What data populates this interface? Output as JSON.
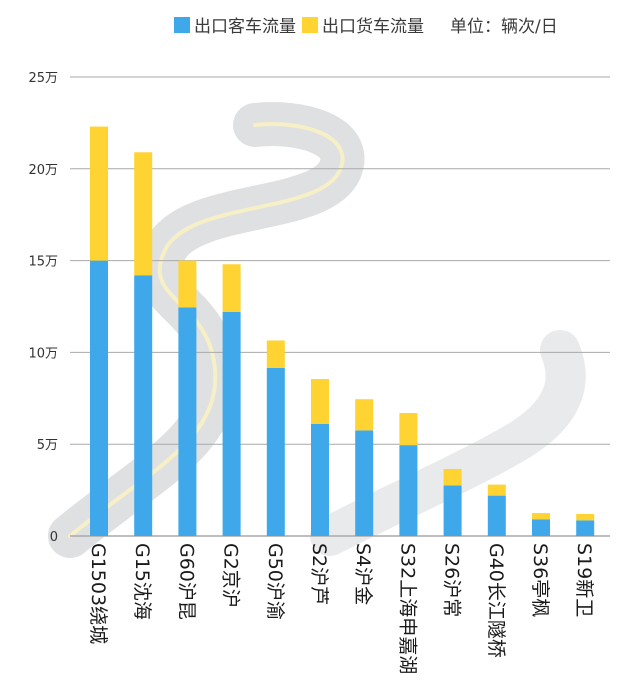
{
  "legend": {
    "passenger_label": "出口客车流量",
    "truck_label": "出口货车流量",
    "unit_label": "单位：辆次/日"
  },
  "colors": {
    "passenger": "#3ea8ea",
    "truck": "#ffd332",
    "grid": "#a9a9a9",
    "road": "#d4d6d8",
    "road_line": "#f7efc6"
  },
  "chart_data": {
    "type": "bar",
    "stacked": true,
    "orientation": "vertical",
    "categories": [
      "G1503绕城",
      "G15沈海",
      "G60沪昆",
      "G2京沪",
      "G50沪渝",
      "S2沪芦",
      "S4沪金",
      "S32上海申嘉湖",
      "S26沪常",
      "G40长江隧桥",
      "S36亭枫",
      "S19新卫"
    ],
    "series": [
      {
        "name": "出口客车流量",
        "values": [
          150000,
          142000,
          124500,
          122000,
          91500,
          61000,
          57500,
          49500,
          27500,
          22000,
          9000,
          8500
        ]
      },
      {
        "name": "出口货车流量",
        "values": [
          73000,
          67000,
          25500,
          26000,
          15000,
          24500,
          17000,
          17500,
          9000,
          6000,
          3500,
          3500
        ]
      }
    ],
    "ylim": [
      0,
      250000
    ],
    "yticks": [
      0,
      50000,
      100000,
      150000,
      200000,
      250000
    ],
    "ytick_labels": [
      "0",
      "5万",
      "10万",
      "15万",
      "20万",
      "25万"
    ],
    "grid": true,
    "legend_position": "top-right"
  }
}
